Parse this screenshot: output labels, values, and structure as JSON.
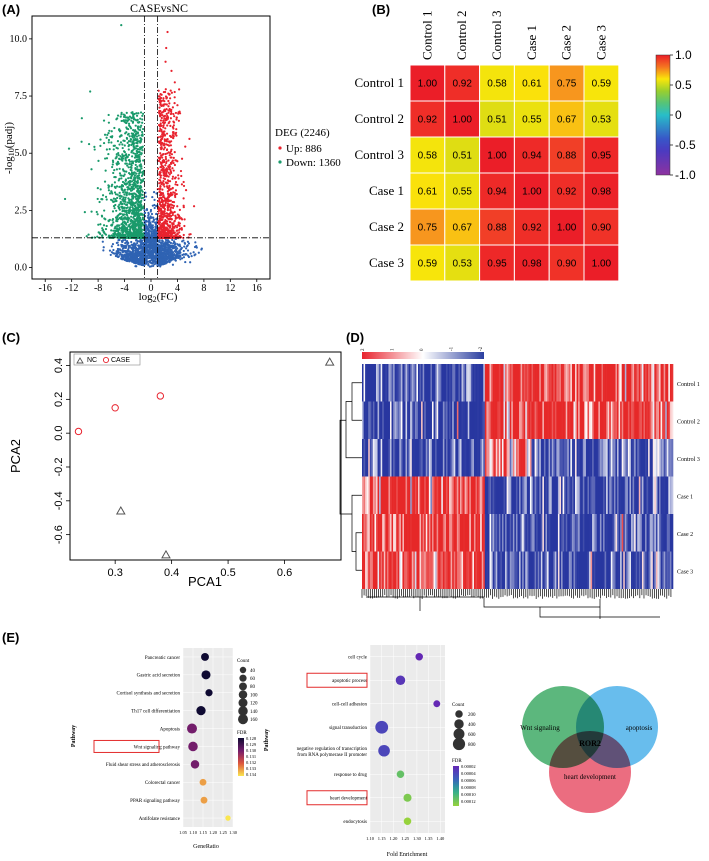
{
  "panels": {
    "A": "(A)",
    "B": "(B)",
    "C": "(C)",
    "D": "(D)",
    "E": "(E)"
  },
  "chart_data": [
    {
      "id": "A",
      "type": "scatter",
      "title": "CASEvsNC",
      "xlabel": "log2(FC)",
      "ylabel": "-log10(padj)",
      "xlim": [
        -18,
        18
      ],
      "ylim": [
        -0.5,
        11
      ],
      "xticks": [
        "-16",
        "-12",
        "-8",
        "-4",
        "0",
        "4",
        "8",
        "12",
        "16"
      ],
      "yticks": [
        "0.0",
        "2.5",
        "5.0",
        "7.5",
        "10.0"
      ],
      "threshold_y": 1.3,
      "threshold_x": [
        -1,
        1
      ],
      "legend": {
        "title": "DEG (2246)",
        "items": [
          {
            "label": "Up: 886",
            "color": "#e8232e"
          },
          {
            "label": "Down: 1360",
            "color": "#1a9a6b"
          }
        ]
      },
      "series": [
        {
          "name": "Up",
          "color": "#e8232e",
          "count": 886
        },
        {
          "name": "Down",
          "color": "#1a9a6b",
          "count": 1360
        },
        {
          "name": "Not significant",
          "color": "#2f63b3"
        }
      ]
    },
    {
      "id": "B",
      "type": "heatmap",
      "rows": [
        "Control 1",
        "Control 2",
        "Control 3",
        "Case 1",
        "Case 2",
        "Case 3"
      ],
      "cols": [
        "Control 1",
        "Control 2",
        "Control 3",
        "Case 1",
        "Case 2",
        "Case 3"
      ],
      "values": [
        [
          1.0,
          0.92,
          0.58,
          0.61,
          0.75,
          0.59
        ],
        [
          0.92,
          1.0,
          0.51,
          0.55,
          0.67,
          0.53
        ],
        [
          0.58,
          0.51,
          1.0,
          0.94,
          0.88,
          0.95
        ],
        [
          0.61,
          0.55,
          0.94,
          1.0,
          0.92,
          0.98
        ],
        [
          0.75,
          0.67,
          0.88,
          0.92,
          1.0,
          0.9
        ],
        [
          0.59,
          0.53,
          0.95,
          0.98,
          0.9,
          1.0
        ]
      ],
      "value_labels": [
        [
          "1.00",
          "0.92",
          "0.58",
          "0.61",
          "0.75",
          "0.59"
        ],
        [
          "0.92",
          "1.00",
          "0.51",
          "0.55",
          "0.67",
          "0.53"
        ],
        [
          "0.58",
          "0.51",
          "1.00",
          "0.94",
          "0.88",
          "0.95"
        ],
        [
          "0.61",
          "0.55",
          "0.94",
          "1.00",
          "0.92",
          "0.98"
        ],
        [
          "0.75",
          "0.67",
          "0.88",
          "0.92",
          "1.00",
          "0.90"
        ],
        [
          "0.59",
          "0.53",
          "0.95",
          "0.98",
          "0.90",
          "1.00"
        ]
      ],
      "colorbar": {
        "ticks": [
          "1.0",
          "0.5",
          "0",
          "-0.5",
          "-1.0"
        ],
        "range": [
          -1,
          1
        ]
      }
    },
    {
      "id": "C",
      "type": "scatter",
      "xlabel": "PCA1",
      "ylabel": "PCA2",
      "xlim": [
        0.22,
        0.7
      ],
      "ylim": [
        -0.75,
        0.48
      ],
      "xticks": [
        "0.3",
        "0.4",
        "0.5",
        "0.6"
      ],
      "yticks": [
        "0.4",
        "0.2",
        "0.0",
        "-0.2",
        "-0.4",
        "-0.6"
      ],
      "legend": [
        {
          "label": "NC",
          "marker": "triangle",
          "color": "#555555"
        },
        {
          "label": "CASE",
          "marker": "circle",
          "color": "#e8232e"
        }
      ],
      "series": [
        {
          "name": "NC",
          "points": [
            [
              0.68,
              0.42
            ],
            [
              0.31,
              -0.46
            ],
            [
              0.39,
              -0.72
            ]
          ]
        },
        {
          "name": "CASE",
          "points": [
            [
              0.235,
              0.01
            ],
            [
              0.3,
              0.15
            ],
            [
              0.38,
              0.22
            ]
          ]
        }
      ]
    },
    {
      "id": "D",
      "type": "heatmap",
      "rows": [
        "Control 1",
        "Control 2",
        "Control 3",
        "Case 1",
        "Case 2",
        "Case 3"
      ],
      "color_key": {
        "ticks": [
          "2",
          "1",
          "0",
          "-1",
          "-2"
        ]
      }
    },
    {
      "id": "E1",
      "type": "scatter",
      "xlabel": "GeneRatio",
      "ylabel": "Pathway",
      "xticks": [
        "1.05",
        "1.10",
        "1.15",
        "1.20",
        "1.25",
        "1.30"
      ],
      "categories": [
        "Pancreatic cancer",
        "Gastric acid secretion",
        "Cortisol synthesis and secretion",
        "Th17 cell differentiation",
        "Apoptosis",
        "Wnt signaling pathway",
        "Fluid shear stress and atherosclerosis",
        "Colorectal cancer",
        "PPAR signaling pathway",
        "Antifolate resistance"
      ],
      "x": [
        1.16,
        1.165,
        1.18,
        1.14,
        1.095,
        1.1,
        1.11,
        1.15,
        1.155,
        1.275
      ],
      "count": [
        80,
        120,
        60,
        130,
        160,
        140,
        100,
        50,
        50,
        20
      ],
      "fdr": [
        0.128,
        0.128,
        0.128,
        0.128,
        0.13,
        0.13,
        0.13,
        0.133,
        0.133,
        0.134
      ],
      "highlight": "Wnt signaling pathway",
      "size_legend": {
        "title": "Count",
        "ticks": [
          "40",
          "60",
          "80",
          "100",
          "120",
          "140",
          "160"
        ]
      },
      "color_legend": {
        "title": "FDR",
        "ticks": [
          "0.128",
          "0.129",
          "0.130",
          "0.131",
          "0.132",
          "0.133",
          "0.134"
        ]
      }
    },
    {
      "id": "E2",
      "type": "scatter",
      "xlabel": "Fold Enrichment",
      "ylabel": "Pathway",
      "xticks": [
        "1.10",
        "1.15",
        "1.20",
        "1.25",
        "1.30",
        "1.35",
        "1.40"
      ],
      "categories": [
        "cell cycle",
        "apoptotic process",
        "cell-cell adhesion",
        "signal transduction",
        "negative regulation of transcription from RNA polymerase II promoter",
        "response to drug",
        "heart development",
        "endocytosis"
      ],
      "x": [
        1.31,
        1.23,
        1.385,
        1.15,
        1.16,
        1.23,
        1.26,
        1.26
      ],
      "count": [
        200,
        400,
        150,
        900,
        700,
        200,
        250,
        200
      ],
      "fdr": [
        2e-05,
        3e-05,
        2e-05,
        4e-05,
        4e-05,
        0.00011,
        0.00012,
        0.00013
      ],
      "highlight": [
        "apoptotic process",
        "heart development"
      ],
      "size_legend": {
        "title": "Count",
        "ticks": [
          "200",
          "400",
          "600",
          "800"
        ]
      },
      "color_legend": {
        "title": "FDR",
        "ticks": [
          "0.00002",
          "0.00004",
          "0.00006",
          "0.00008",
          "0.00010",
          "0.00012"
        ]
      }
    }
  ],
  "venn": {
    "sets": [
      {
        "label": "Wnt signaling",
        "color": "#3faa66"
      },
      {
        "label": "apoptosis",
        "color": "#4db1ea"
      },
      {
        "label": "heart development",
        "color": "#e8536a"
      }
    ],
    "intersection": "ROR2"
  }
}
